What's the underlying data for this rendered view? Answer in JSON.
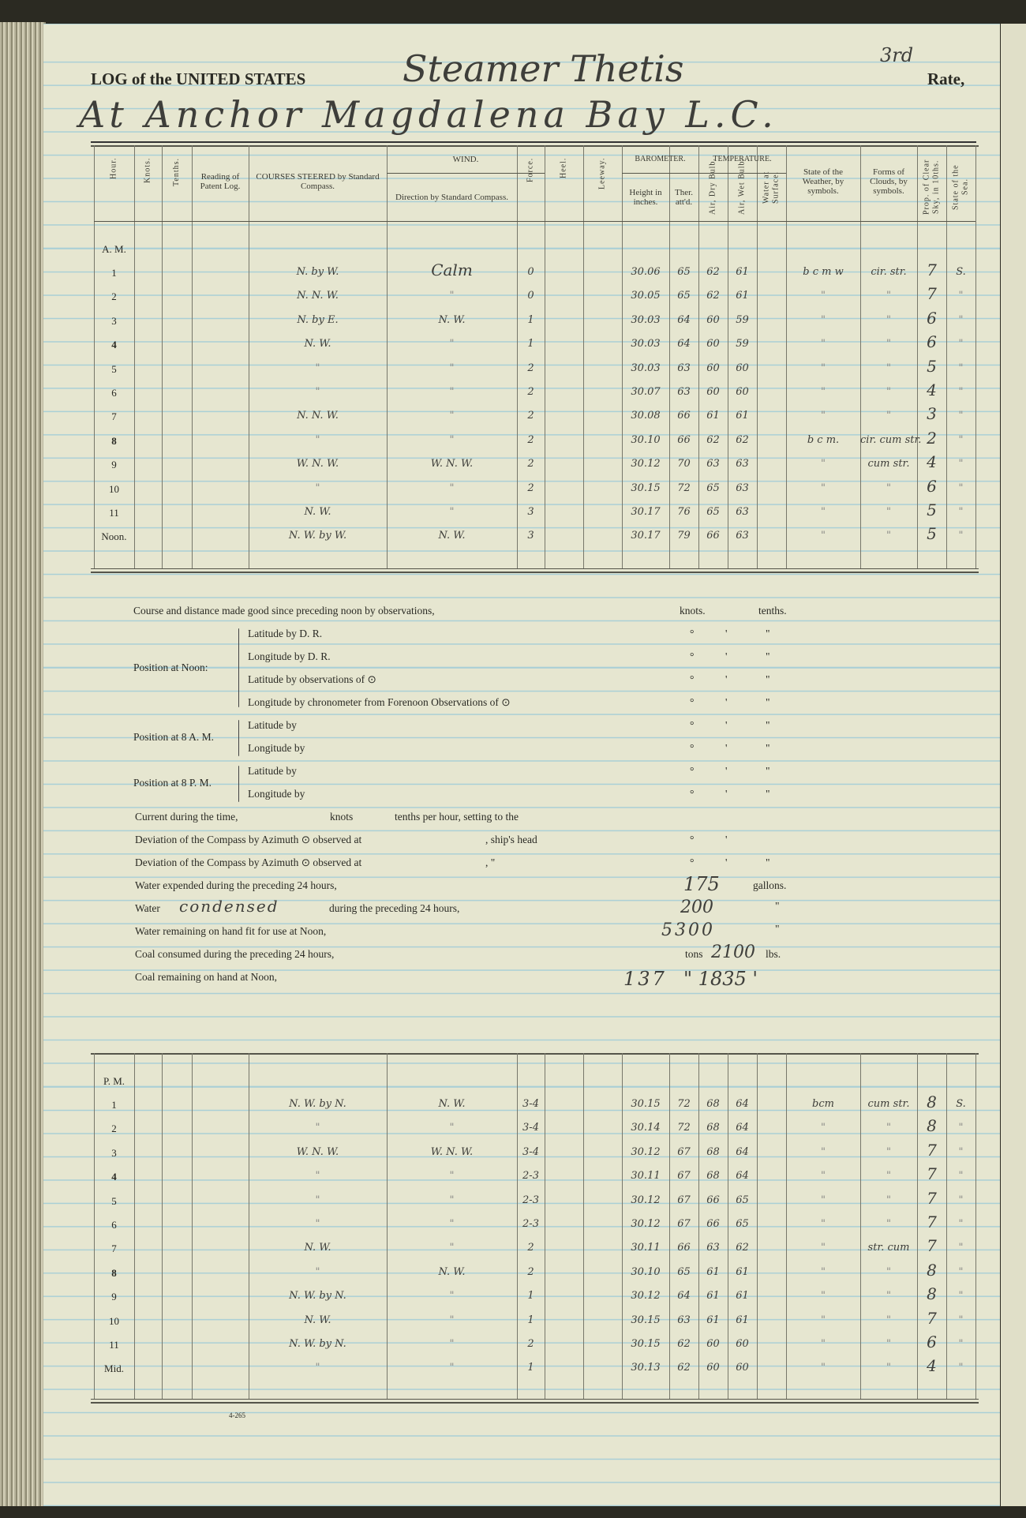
{
  "header": {
    "printed_title": "LOG of the UNITED STATES",
    "vessel_handwritten": "Steamer Thetis",
    "rate_handwritten": "3rd",
    "rate_label": "Rate,",
    "location_handwritten": "At Anchor Magdalena Bay L.C."
  },
  "columns": {
    "hour": "Hour.",
    "knots": "Knots.",
    "tenths": "Tenths.",
    "patent_log": "Reading of Patent Log.",
    "courses": "COURSES STEERED by Standard Compass.",
    "wind": "WIND.",
    "wind_direction": "Direction by Standard Compass.",
    "force": "Force.",
    "heel": "Heel.",
    "leeway": "Leeway.",
    "barometer": "BAROMETER.",
    "temperature": "TEMPERATURE.",
    "height": "Height in inches.",
    "ther": "Ther. att'd.",
    "dry": "Air, Dry Bulb.",
    "wet": "Air, Wet Bulb.",
    "water": "Water at Surface.",
    "weather": "State of the Weather, by symbols.",
    "clouds": "Forms of Clouds, by symbols.",
    "clear_sky": "Prop. of Clear Sky, in 10ths.",
    "sea": "State of the Sea."
  },
  "am": {
    "label": "A. M.",
    "rows": [
      [
        "1",
        "N. by W.",
        "Calm",
        "0",
        "30.06",
        "65",
        "62",
        "61",
        "b c m w",
        "cir. str.",
        "7",
        "S."
      ],
      [
        "2",
        "N. N. W.",
        "\"",
        "0",
        "30.05",
        "65",
        "62",
        "61",
        "\"",
        "\"",
        "7",
        "\""
      ],
      [
        "3",
        "N. by E.",
        "N. W.",
        "1",
        "30.03",
        "64",
        "60",
        "59",
        "\"",
        "\"",
        "6",
        "\""
      ],
      [
        "4",
        "N. W.",
        "\"",
        "1",
        "30.03",
        "64",
        "60",
        "59",
        "\"",
        "\"",
        "6",
        "\""
      ],
      [
        "5",
        "\"",
        "\"",
        "2",
        "30.03",
        "63",
        "60",
        "60",
        "\"",
        "\"",
        "5",
        "\""
      ],
      [
        "6",
        "\"",
        "\"",
        "2",
        "30.07",
        "63",
        "60",
        "60",
        "\"",
        "\"",
        "4",
        "\""
      ],
      [
        "7",
        "N. N. W.",
        "\"",
        "2",
        "30.08",
        "66",
        "61",
        "61",
        "\"",
        "\"",
        "3",
        "\""
      ],
      [
        "8",
        "\"",
        "\"",
        "2",
        "30.10",
        "66",
        "62",
        "62",
        "b c m.",
        "cir. cum str.",
        "2",
        "\""
      ],
      [
        "9",
        "W. N. W.",
        "W. N. W.",
        "2",
        "30.12",
        "70",
        "63",
        "63",
        "\"",
        "cum str.",
        "4",
        "\""
      ],
      [
        "10",
        "\"",
        "\"",
        "2",
        "30.15",
        "72",
        "65",
        "63",
        "\"",
        "\"",
        "6",
        "\""
      ],
      [
        "11",
        "N. W.",
        "\"",
        "3",
        "30.17",
        "76",
        "65",
        "63",
        "\"",
        "\"",
        "5",
        "\""
      ],
      [
        "Noon.",
        "N. W. by W.",
        "N. W.",
        "3",
        "30.17",
        "79",
        "66",
        "63",
        "\"",
        "\"",
        "5",
        "\""
      ]
    ]
  },
  "pm": {
    "label": "P. M.",
    "rows": [
      [
        "1",
        "N. W. by N.",
        "N. W.",
        "3-4",
        "30.15",
        "72",
        "68",
        "64",
        "bcm",
        "cum str.",
        "8",
        "S."
      ],
      [
        "2",
        "\"",
        "\"",
        "3-4",
        "30.14",
        "72",
        "68",
        "64",
        "\"",
        "\"",
        "8",
        "\""
      ],
      [
        "3",
        "W. N. W.",
        "W. N. W.",
        "3-4",
        "30.12",
        "67",
        "68",
        "64",
        "\"",
        "\"",
        "7",
        "\""
      ],
      [
        "4",
        "\"",
        "\"",
        "2-3",
        "30.11",
        "67",
        "68",
        "64",
        "\"",
        "\"",
        "7",
        "\""
      ],
      [
        "5",
        "\"",
        "\"",
        "2-3",
        "30.12",
        "67",
        "66",
        "65",
        "\"",
        "\"",
        "7",
        "\""
      ],
      [
        "6",
        "\"",
        "\"",
        "2-3",
        "30.12",
        "67",
        "66",
        "65",
        "\"",
        "\"",
        "7",
        "\""
      ],
      [
        "7",
        "N. W.",
        "\"",
        "2",
        "30.11",
        "66",
        "63",
        "62",
        "\"",
        "str. cum",
        "7",
        "\""
      ],
      [
        "8",
        "\"",
        "N. W.",
        "2",
        "30.10",
        "65",
        "61",
        "61",
        "\"",
        "\"",
        "8",
        "\""
      ],
      [
        "9",
        "N. W. by N.",
        "\"",
        "1",
        "30.12",
        "64",
        "61",
        "61",
        "\"",
        "\"",
        "8",
        "\""
      ],
      [
        "10",
        "N. W.",
        "\"",
        "1",
        "30.15",
        "63",
        "61",
        "61",
        "\"",
        "\"",
        "7",
        "\""
      ],
      [
        "11",
        "N. W. by N.",
        "\"",
        "2",
        "30.15",
        "62",
        "60",
        "60",
        "\"",
        "\"",
        "6",
        "\""
      ],
      [
        "Mid.",
        "\"",
        "\"",
        "1",
        "30.13",
        "62",
        "60",
        "60",
        "\"",
        "\"",
        "4",
        "\""
      ]
    ]
  },
  "summary": {
    "course_line": "Course and distance made good since preceding noon by observations,",
    "knots": "knots.",
    "tenths": "tenths.",
    "pos_noon": "Position at Noon:",
    "lat_dr": "Latitude by D. R.",
    "lon_dr": "Longitude by D. R.",
    "lat_obs": "Latitude by observations of ⊙",
    "lon_chron": "Longitude by chronometer from Forenoon Observations of ⊙",
    "pos_8am": "Position at 8 A. M.",
    "pos_8pm": "Position at 8 P. M.",
    "lat_by": "Latitude by",
    "lon_by": "Longitude by",
    "deg": "°",
    "min": "'",
    "sec": "\"",
    "current": "Current during the time,",
    "current_knots": "knots",
    "current_tenths": "tenths per hour, setting to the",
    "deviation": "Deviation of the Compass by Azimuth ⊙ observed at",
    "ships_head": ", ship's head",
    "ditto": ",      \"",
    "water_expended": "Water expended during the preceding 24 hours,",
    "water_expended_value": "175",
    "gallons": "gallons.",
    "water_word": "Water",
    "water_condensed": "condensed",
    "water_condensed_rest": "during the preceding 24 hours,",
    "water_condensed_value": "200",
    "ditto_mark": "\"",
    "water_remaining": "Water remaining on hand fit for use at Noon,",
    "water_remaining_value": "5300",
    "coal_consumed": "Coal consumed during the preceding 24 hours,",
    "tons": "tons",
    "coal_consumed_lbs": "2100",
    "lbs": "lbs.",
    "coal_remaining": "Coal remaining on hand at Noon,",
    "coal_remaining_tons": "137",
    "coal_remaining_lbs": "\" 1835 '"
  },
  "form_number": "4-265",
  "colors": {
    "paper": "#e6e6d0",
    "rule": "#a9cfd6",
    "ink": "#3e3e3a"
  }
}
